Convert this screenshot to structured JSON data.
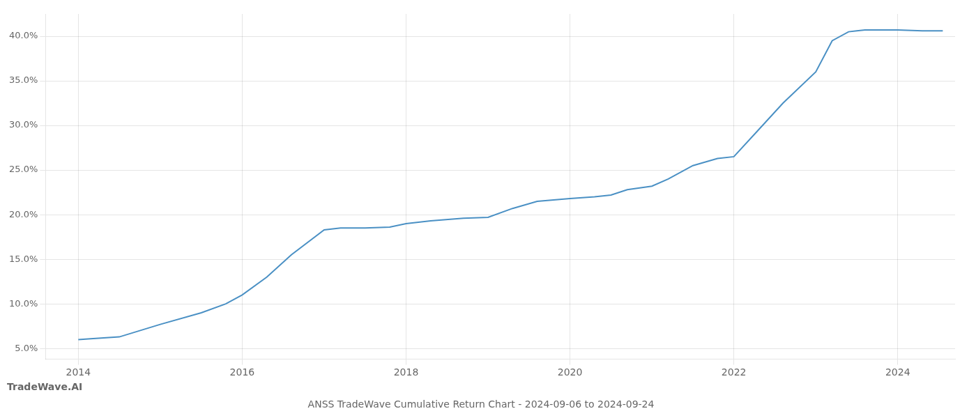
{
  "chart_data": {
    "type": "line",
    "title": "ANSS TradeWave Cumulative Return Chart - 2024-09-06 to 2024-09-24",
    "annotations": [
      "TradeWave.AI"
    ],
    "x": [
      2014.0,
      2014.15,
      2014.5,
      2015.0,
      2015.5,
      2015.8,
      2016.0,
      2016.3,
      2016.6,
      2017.0,
      2017.2,
      2017.5,
      2017.8,
      2018.0,
      2018.3,
      2018.7,
      2019.0,
      2019.3,
      2019.6,
      2020.0,
      2020.3,
      2020.5,
      2020.7,
      2021.0,
      2021.2,
      2021.5,
      2021.8,
      2022.0,
      2022.3,
      2022.6,
      2023.0,
      2023.2,
      2023.4,
      2023.5,
      2023.6,
      2024.0,
      2024.3,
      2024.55
    ],
    "values": [
      0.06,
      0.061,
      0.063,
      0.077,
      0.09,
      0.1,
      0.11,
      0.13,
      0.155,
      0.183,
      0.185,
      0.185,
      0.186,
      0.19,
      0.193,
      0.196,
      0.197,
      0.207,
      0.215,
      0.218,
      0.22,
      0.222,
      0.228,
      0.232,
      0.24,
      0.255,
      0.263,
      0.265,
      0.295,
      0.325,
      0.36,
      0.395,
      0.405,
      0.406,
      0.407,
      0.407,
      0.406,
      0.406
    ],
    "color": "#4a90c4",
    "xlim": [
      2013.6,
      2024.7
    ],
    "ylim": [
      0.038,
      0.425
    ],
    "xticks": [
      2014,
      2016,
      2018,
      2020,
      2022,
      2024
    ],
    "yticks": [
      {
        "value": 0.05,
        "label": "5.0%"
      },
      {
        "value": 0.1,
        "label": "10.0%"
      },
      {
        "value": 0.15,
        "label": "15.0%"
      },
      {
        "value": 0.2,
        "label": "20.0%"
      },
      {
        "value": 0.25,
        "label": "25.0%"
      },
      {
        "value": 0.3,
        "label": "30.0%"
      },
      {
        "value": 0.35,
        "label": "35.0%"
      },
      {
        "value": 0.4,
        "label": "40.0%"
      }
    ],
    "grid": true
  }
}
